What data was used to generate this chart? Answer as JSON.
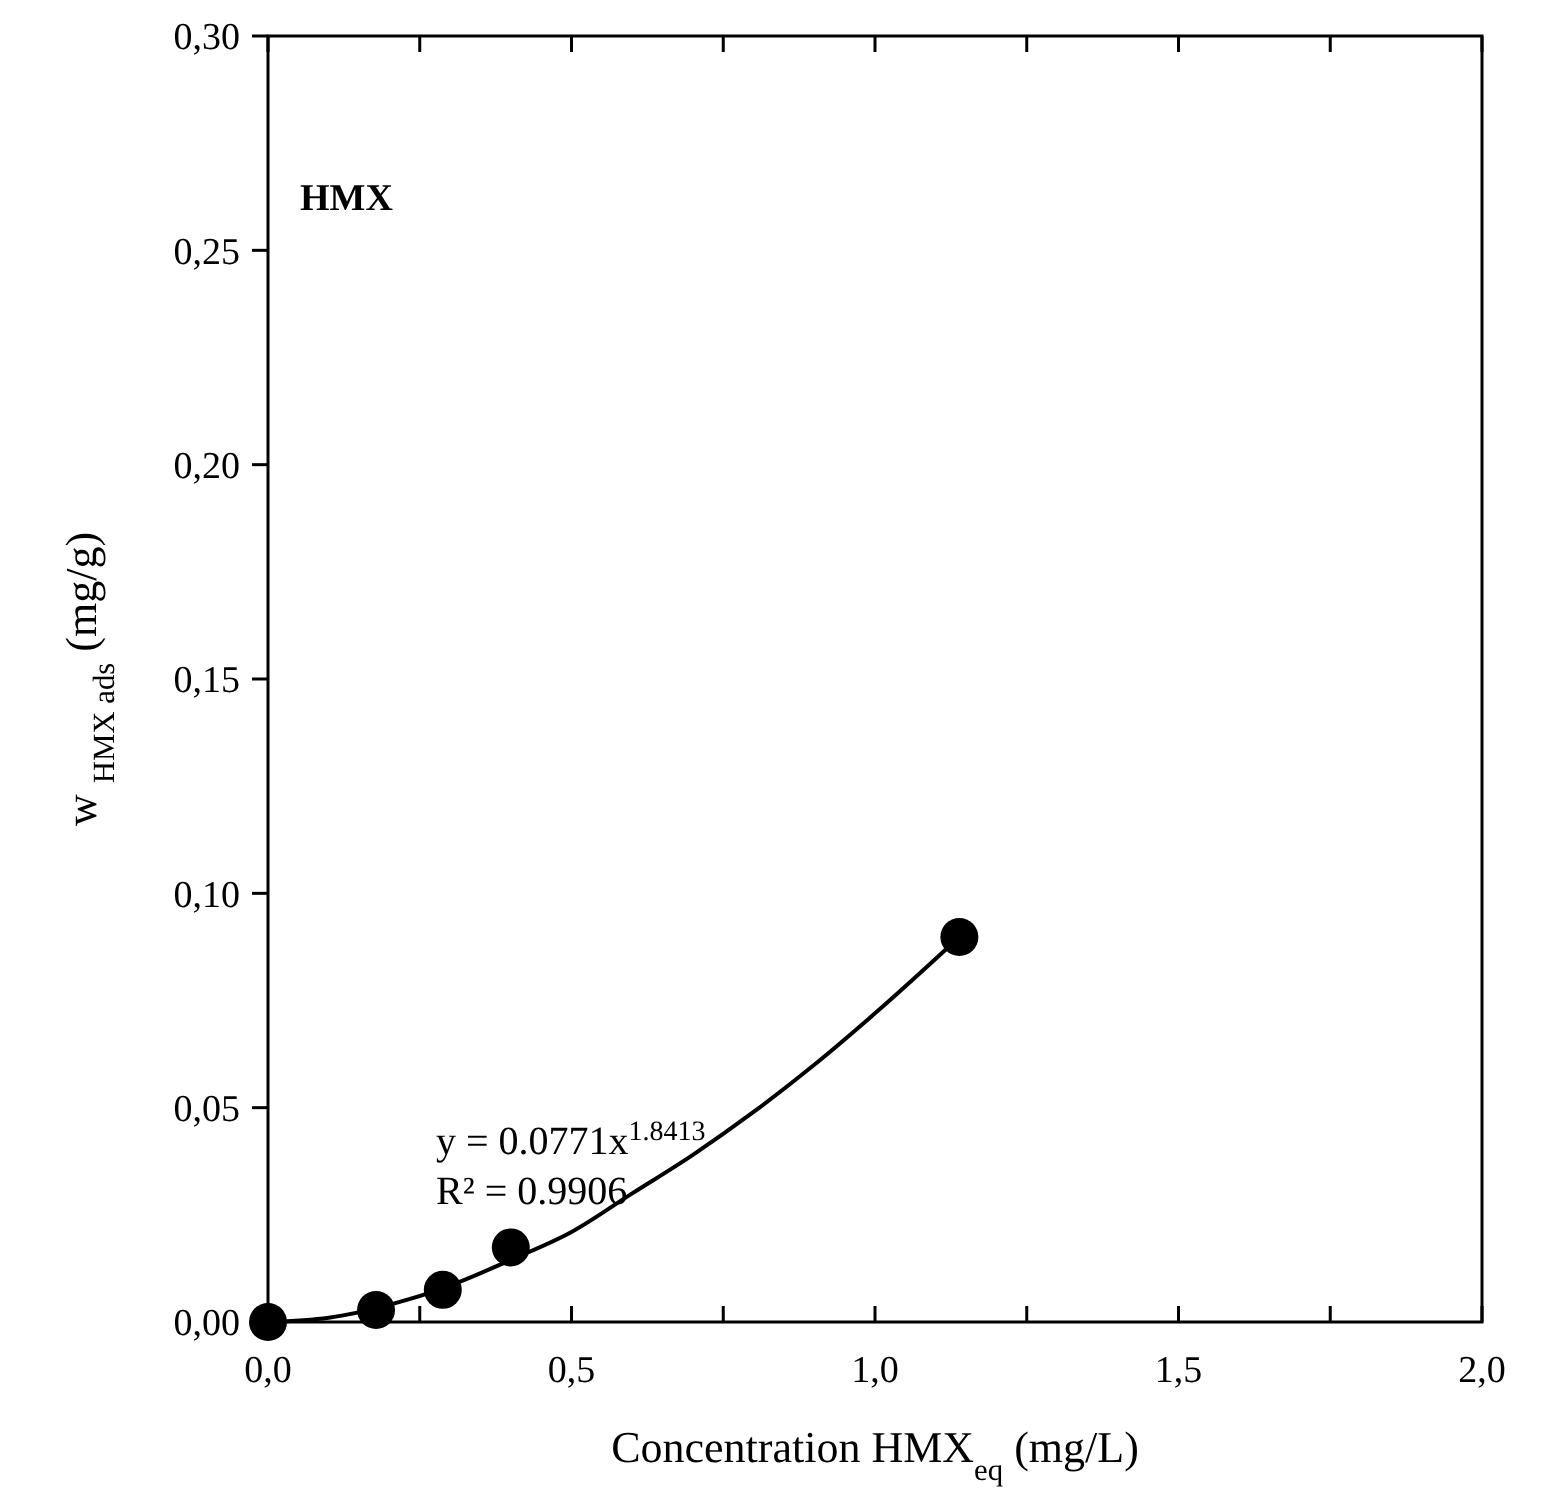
{
  "chart_data": {
    "type": "scatter",
    "title": "HMX",
    "xlabel": "Concentration HMX$_{eq}$ (mg/L)",
    "ylabel": "w $_{HMX ads}$ (mg/g)",
    "annotations": [
      "y = 0.0771x$^{1.8413}$",
      "R² = 0.9906"
    ],
    "series": [
      {
        "color": "#000000",
        "x": [
          0,
          0.178,
          0.288,
          0.4,
          1.139
        ],
        "values": [
          0,
          0.0028,
          0.0075,
          0.0174,
          0.0898
        ],
        "marker": "circle"
      },
      {
        "type": "line",
        "color": "#000000",
        "x": [
          0,
          0.1,
          0.2,
          0.3,
          0.4,
          0.5,
          0.6,
          0.7,
          0.8,
          0.9,
          1.0,
          1.139
        ],
        "values": [
          0,
          0.001,
          0.004,
          0.0085,
          0.0145,
          0.021,
          0.03,
          0.039,
          0.049,
          0.06,
          0.072,
          0.0898
        ],
        "line_style": "solid"
      }
    ],
    "xlim": [
      0,
      2
    ],
    "ylim": [
      0,
      0.3
    ],
    "xticks": [
      {
        "value": 0,
        "label": "0,0"
      },
      {
        "value": 0.25,
        "label": null
      },
      {
        "value": 0.5,
        "label": "0,5"
      },
      {
        "value": 0.75,
        "label": null
      },
      {
        "value": 1,
        "label": "1,0"
      },
      {
        "value": 1.25,
        "label": null
      },
      {
        "value": 1.5,
        "label": "1,5"
      },
      {
        "value": 1.75,
        "label": null
      },
      {
        "value": 2,
        "label": "2,0"
      }
    ],
    "yticks": [
      {
        "value": 0,
        "label": "0,00"
      },
      {
        "value": 0.05,
        "label": "0,05"
      },
      {
        "value": 0.1,
        "label": "0,10"
      },
      {
        "value": 0.15,
        "label": "0,15"
      },
      {
        "value": 0.2,
        "label": "0,20"
      },
      {
        "value": 0.25,
        "label": "0,25"
      },
      {
        "value": 0.3,
        "label": "0,30"
      }
    ],
    "grid": false
  }
}
